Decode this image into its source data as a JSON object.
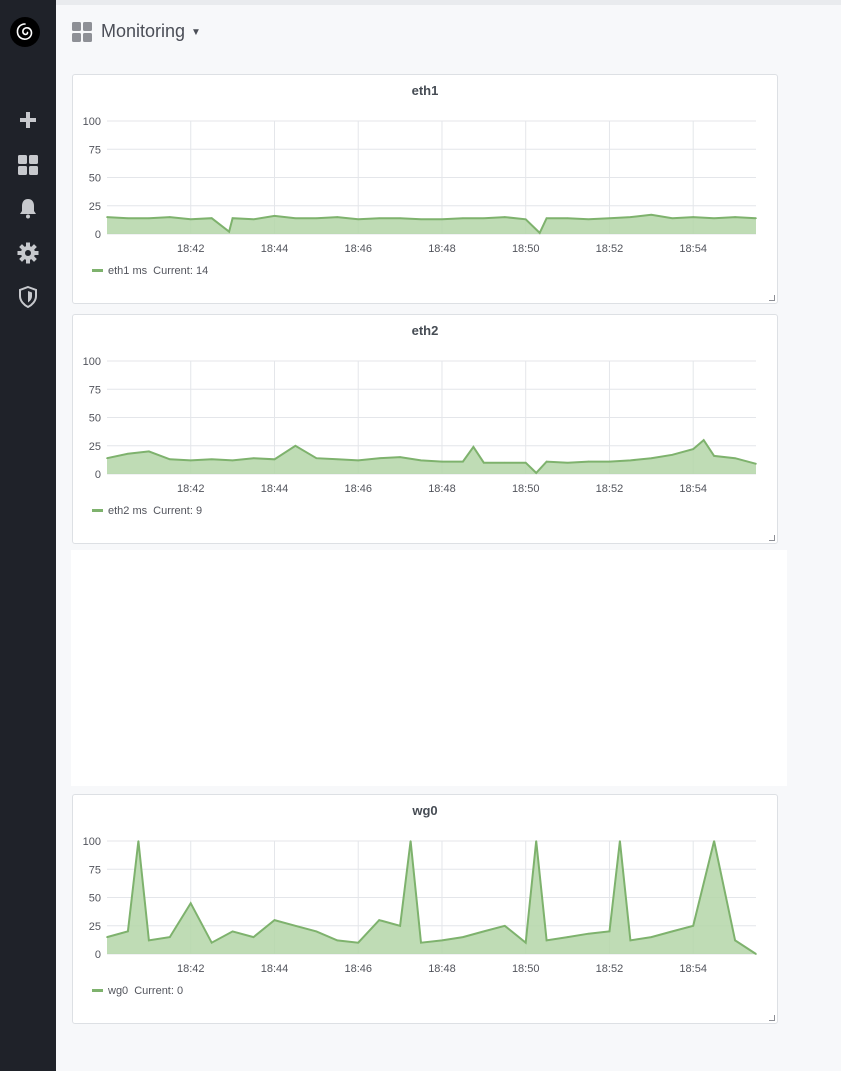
{
  "app": {
    "dashboard_title": "Monitoring",
    "dashboard_icon": "grid-icon"
  },
  "sidebar": {
    "items": [
      {
        "name": "add",
        "icon": "plus-icon"
      },
      {
        "name": "dashboards",
        "icon": "grid-icon"
      },
      {
        "name": "alerting",
        "icon": "bell-icon"
      },
      {
        "name": "configuration",
        "icon": "gear-icon"
      },
      {
        "name": "server-admin",
        "icon": "shield-icon"
      }
    ]
  },
  "colors": {
    "series": "#7eb26d",
    "series_fill": "#b4d6a8",
    "sidebar_bg": "#1f2229",
    "grid": "#e4e6ea"
  },
  "panels": [
    {
      "title": "eth1",
      "legend": {
        "name": "eth1 ms",
        "current_label": "Current:",
        "current_value": "14"
      }
    },
    {
      "title": "eth2",
      "legend": {
        "name": "eth2 ms",
        "current_label": "Current:",
        "current_value": "9"
      }
    },
    {
      "title": "wg0",
      "legend": {
        "name": "wg0",
        "current_label": "Current:",
        "current_value": "0"
      }
    }
  ],
  "chart_data": [
    {
      "type": "area",
      "title": "eth1",
      "xlabel": "",
      "ylabel": "",
      "ylim": [
        0,
        100
      ],
      "yticks": [
        "0",
        "25",
        "50",
        "75",
        "100"
      ],
      "xlim": [
        "18:40:00",
        "18:55:30"
      ],
      "xticks": [
        "18:42",
        "18:44",
        "18:46",
        "18:48",
        "18:50",
        "18:52",
        "18:54"
      ],
      "grid": true,
      "legend": "bottom-left",
      "series": [
        {
          "name": "eth1 ms",
          "x": [
            "18:40:00",
            "18:40:30",
            "18:41:00",
            "18:41:30",
            "18:42:00",
            "18:42:30",
            "18:42:55",
            "18:43:00",
            "18:43:30",
            "18:44:00",
            "18:44:30",
            "18:45:00",
            "18:45:30",
            "18:46:00",
            "18:46:30",
            "18:47:00",
            "18:47:30",
            "18:48:00",
            "18:48:30",
            "18:49:00",
            "18:49:30",
            "18:50:00",
            "18:50:20",
            "18:50:30",
            "18:51:00",
            "18:51:30",
            "18:52:00",
            "18:52:30",
            "18:53:00",
            "18:53:30",
            "18:54:00",
            "18:54:30",
            "18:55:00",
            "18:55:30"
          ],
          "values": [
            15,
            14,
            14,
            15,
            13,
            14,
            2,
            14,
            13,
            16,
            14,
            14,
            15,
            13,
            14,
            14,
            13,
            13,
            14,
            14,
            15,
            13,
            1,
            14,
            14,
            13,
            14,
            15,
            17,
            14,
            15,
            14,
            15,
            14
          ]
        }
      ]
    },
    {
      "type": "area",
      "title": "eth2",
      "xlabel": "",
      "ylabel": "",
      "ylim": [
        0,
        100
      ],
      "yticks": [
        "0",
        "25",
        "50",
        "75",
        "100"
      ],
      "xlim": [
        "18:40:00",
        "18:55:30"
      ],
      "xticks": [
        "18:42",
        "18:44",
        "18:46",
        "18:48",
        "18:50",
        "18:52",
        "18:54"
      ],
      "grid": true,
      "legend": "bottom-left",
      "series": [
        {
          "name": "eth2 ms",
          "x": [
            "18:40:00",
            "18:40:30",
            "18:41:00",
            "18:41:30",
            "18:42:00",
            "18:42:30",
            "18:43:00",
            "18:43:30",
            "18:44:00",
            "18:44:30",
            "18:45:00",
            "18:45:30",
            "18:46:00",
            "18:46:30",
            "18:47:00",
            "18:47:30",
            "18:48:00",
            "18:48:30",
            "18:48:45",
            "18:49:00",
            "18:49:30",
            "18:50:00",
            "18:50:15",
            "18:50:30",
            "18:51:00",
            "18:51:30",
            "18:52:00",
            "18:52:30",
            "18:53:00",
            "18:53:30",
            "18:54:00",
            "18:54:15",
            "18:54:30",
            "18:55:00",
            "18:55:30"
          ],
          "values": [
            14,
            18,
            20,
            13,
            12,
            13,
            12,
            14,
            13,
            25,
            14,
            13,
            12,
            14,
            15,
            12,
            11,
            11,
            24,
            10,
            10,
            10,
            1,
            11,
            10,
            11,
            11,
            12,
            14,
            17,
            22,
            30,
            16,
            14,
            9
          ]
        }
      ]
    },
    {
      "type": "area",
      "title": "wg0",
      "xlabel": "",
      "ylabel": "",
      "ylim": [
        0,
        100
      ],
      "yticks": [
        "0",
        "25",
        "50",
        "75",
        "100"
      ],
      "xlim": [
        "18:40:00",
        "18:55:30"
      ],
      "xticks": [
        "18:42",
        "18:44",
        "18:46",
        "18:48",
        "18:50",
        "18:52",
        "18:54"
      ],
      "grid": true,
      "legend": "bottom-left",
      "series": [
        {
          "name": "wg0",
          "x": [
            "18:40:00",
            "18:40:30",
            "18:40:45",
            "18:41:00",
            "18:41:30",
            "18:42:00",
            "18:42:30",
            "18:43:00",
            "18:43:30",
            "18:44:00",
            "18:44:30",
            "18:45:00",
            "18:45:30",
            "18:46:00",
            "18:46:30",
            "18:47:00",
            "18:47:15",
            "18:47:30",
            "18:48:00",
            "18:48:30",
            "18:49:00",
            "18:49:30",
            "18:50:00",
            "18:50:15",
            "18:50:30",
            "18:51:00",
            "18:51:30",
            "18:52:00",
            "18:52:15",
            "18:52:30",
            "18:53:00",
            "18:53:30",
            "18:54:00",
            "18:54:30",
            "18:55:00",
            "18:55:30"
          ],
          "values": [
            15,
            20,
            100,
            12,
            15,
            45,
            10,
            20,
            15,
            30,
            25,
            20,
            12,
            10,
            30,
            25,
            100,
            10,
            12,
            15,
            20,
            25,
            10,
            100,
            12,
            15,
            18,
            20,
            100,
            12,
            15,
            20,
            25,
            100,
            12,
            0
          ]
        }
      ]
    }
  ]
}
